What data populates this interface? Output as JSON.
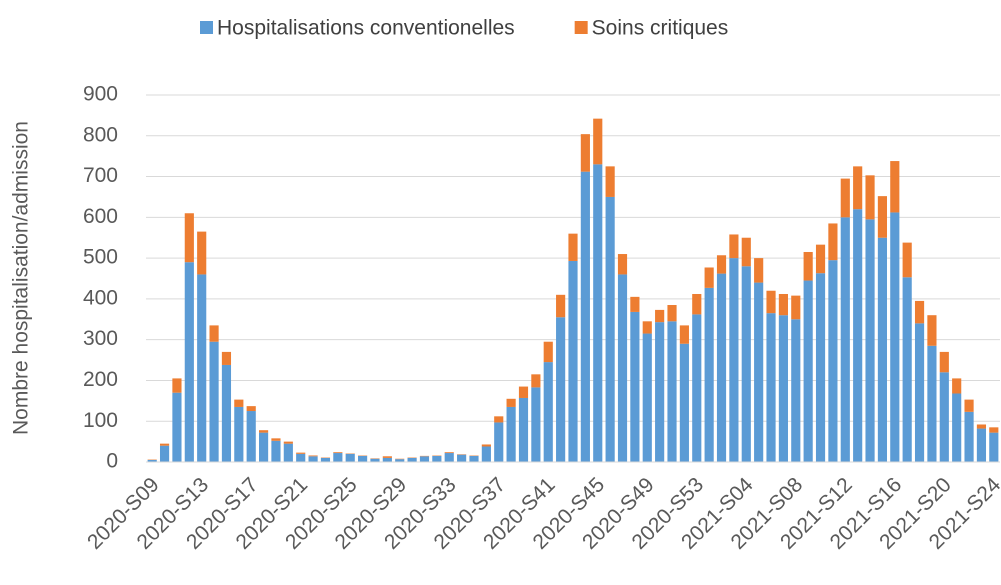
{
  "chart_data": {
    "type": "stacked-bar",
    "y_label": "Nombre hospitalisation/admission",
    "categories": [
      "2020-S09",
      null,
      null,
      null,
      "2020-S13",
      null,
      null,
      null,
      "2020-S17",
      null,
      null,
      null,
      "2020-S21",
      null,
      null,
      null,
      "2020-S25",
      null,
      null,
      null,
      "2020-S29",
      null,
      null,
      null,
      "2020-S33",
      null,
      null,
      null,
      "2020-S37",
      null,
      null,
      null,
      "2020-S41",
      null,
      null,
      null,
      "2020-S45",
      null,
      null,
      null,
      "2020-S49",
      null,
      null,
      null,
      "2020-S53",
      null,
      null,
      null,
      "2021-S04",
      null,
      null,
      null,
      "2021-S08",
      null,
      null,
      null,
      "2021-S12",
      null,
      null,
      null,
      "2021-S16",
      null,
      null,
      null,
      "2021-S20",
      null,
      null,
      null,
      "2021-S24"
    ],
    "series": [
      {
        "name": "Hospitalisations conventionelles",
        "color": "#5b9bd5",
        "values": [
          5,
          40,
          170,
          490,
          460,
          295,
          238,
          135,
          125,
          72,
          52,
          45,
          20,
          14,
          10,
          22,
          20,
          15,
          8,
          10,
          7,
          10,
          14,
          15,
          22,
          18,
          15,
          38,
          97,
          135,
          157,
          183,
          245,
          355,
          493,
          712,
          730,
          650,
          460,
          368,
          315,
          343,
          345,
          290,
          362,
          427,
          462,
          500,
          480,
          440,
          365,
          360,
          350,
          445,
          463,
          495,
          600,
          620,
          595,
          550,
          612,
          453,
          340,
          285,
          220,
          168,
          123,
          82,
          72
        ]
      },
      {
        "name": "Soins critiques",
        "color": "#ed7d31",
        "values": [
          1,
          5,
          35,
          120,
          105,
          40,
          32,
          18,
          12,
          6,
          6,
          5,
          3,
          2,
          1,
          2,
          1,
          1,
          1,
          4,
          1,
          1,
          1,
          1,
          2,
          1,
          1,
          5,
          15,
          20,
          28,
          32,
          50,
          55,
          67,
          92,
          112,
          75,
          50,
          37,
          30,
          30,
          40,
          45,
          50,
          50,
          45,
          58,
          70,
          60,
          55,
          52,
          58,
          70,
          70,
          90,
          95,
          105,
          108,
          102,
          126,
          85,
          55,
          75,
          50,
          37,
          30,
          10,
          13
        ]
      }
    ],
    "ylim": [
      0,
      900
    ],
    "yticks": [
      0,
      100,
      200,
      300,
      400,
      500,
      600,
      700,
      800,
      900
    ],
    "grid": true,
    "legend": "top"
  }
}
